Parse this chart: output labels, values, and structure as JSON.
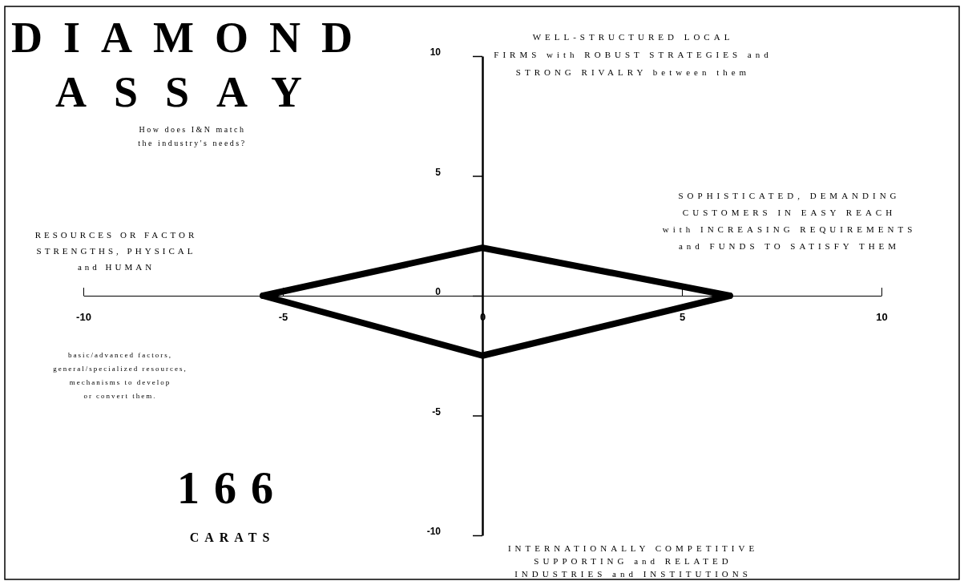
{
  "chart_data": {
    "type": "line",
    "title": "DIAMOND ASSAY",
    "subtitle": "How does I&N match\nthe industry's needs?",
    "x": [
      -5.5,
      0,
      6.2
    ],
    "series": [
      {
        "color": "#000000",
        "values": [
          0,
          2,
          0
        ]
      },
      {
        "color": "#000000",
        "values": [
          0,
          -2.5,
          0
        ]
      }
    ],
    "xlim": [
      -10,
      10
    ],
    "ylim": [
      -10,
      10
    ],
    "xticks": [
      -10,
      -5,
      0,
      5,
      10
    ],
    "yticks": [
      -10,
      -5,
      0,
      5,
      10
    ],
    "marker": "none",
    "line_style": "solid",
    "annotations": [
      "WELL-STRUCTURED LOCAL\nFIRMS with ROBUST STRATEGIES and\nSTRONG RIVALRY between them",
      "SOPHISTICATED, DEMANDING\nCUSTOMERS IN EASY REACH\nwith INCREASING REQUIREMENTS\nand FUNDS TO SATISFY THEM",
      "RESOURCES OR FACTOR\nSTRENGTHS, PHYSICAL\nand HUMAN",
      "basic/advanced factors,\ngeneral/specialized resources,\nmechanisms to develop\nor convert them.",
      "INTERNATIONALLY COMPETITIVE\nSUPPORTING and RELATED\nINDUSTRIES and INSTITUTIONS",
      "166",
      "CARATS"
    ]
  }
}
